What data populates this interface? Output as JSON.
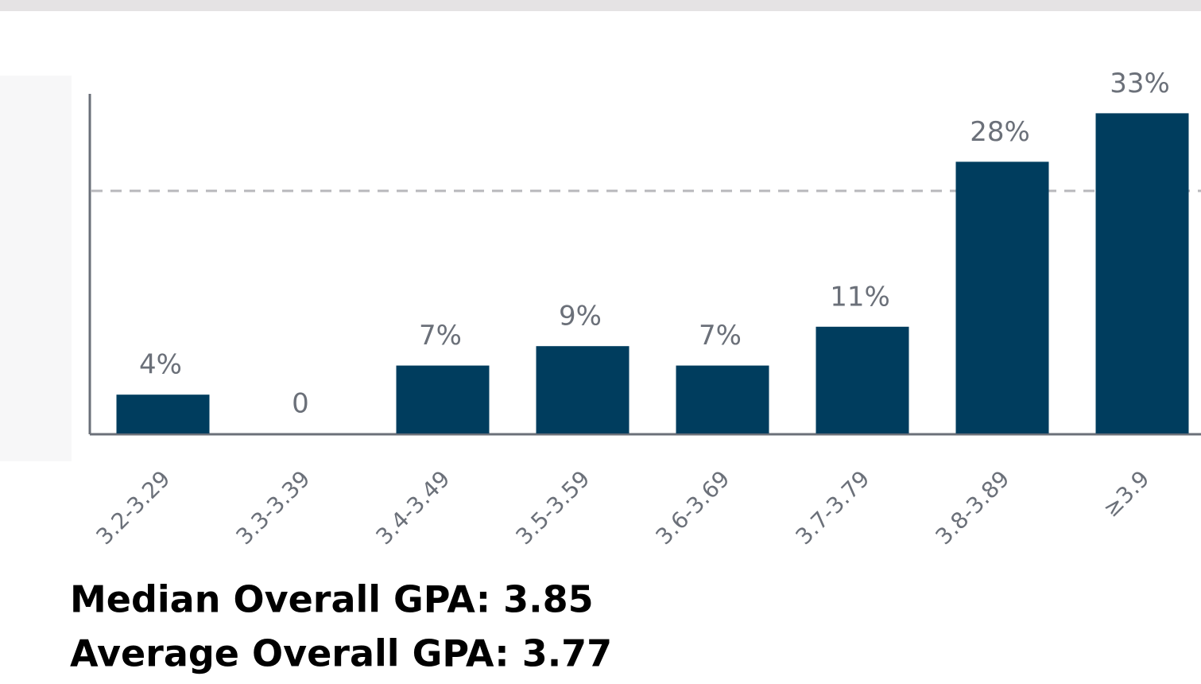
{
  "chart_data": {
    "type": "bar",
    "categories": [
      "3.2-3.29",
      "3.3-3.39",
      "3.4-3.49",
      "3.5-3.59",
      "3.6-3.69",
      "3.7-3.79",
      "3.8-3.89",
      "≥3.9"
    ],
    "values": [
      4,
      0,
      7,
      9,
      7,
      11,
      28,
      33
    ],
    "value_labels": [
      "4%",
      "0",
      "7%",
      "9%",
      "7%",
      "11%",
      "28%",
      "33%"
    ],
    "color": "#003d5e",
    "ylim": [
      0,
      35
    ],
    "gridlines": [
      25
    ],
    "stats": [
      "Median Overall GPA: 3.85",
      "Average Overall GPA: 3.77"
    ]
  }
}
